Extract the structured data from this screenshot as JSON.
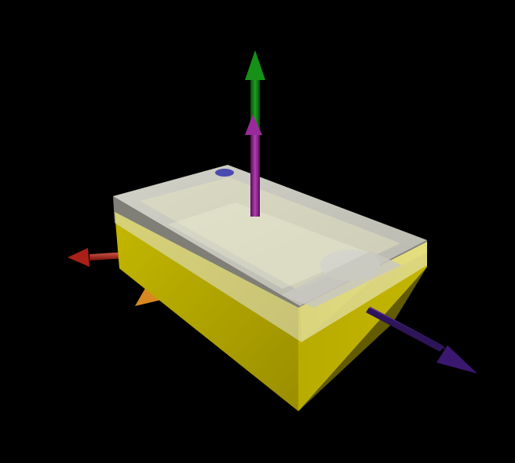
{
  "viewport": {
    "background": "#000000"
  },
  "device": {
    "name": "device-box",
    "body_color": "#c8bb00",
    "body_shade_color": "#8c8200",
    "cover_color": "#d8d8cc",
    "cover_edge_color": "#e8e8e0",
    "marker_color": "#4a4ab0"
  },
  "axes": [
    {
      "name": "y-axis-arrow",
      "color": "#0a7a0a",
      "icon": "arrow-icon"
    },
    {
      "name": "normal-arrow",
      "color": "#8a1a8a",
      "icon": "arrow-icon"
    },
    {
      "name": "x-axis-arrow",
      "color": "#c83028",
      "icon": "arrow-icon"
    },
    {
      "name": "secondary-arrow",
      "color": "#d88820",
      "icon": "arrow-icon"
    },
    {
      "name": "z-axis-arrow",
      "color": "#3a1870",
      "icon": "arrow-icon"
    }
  ]
}
